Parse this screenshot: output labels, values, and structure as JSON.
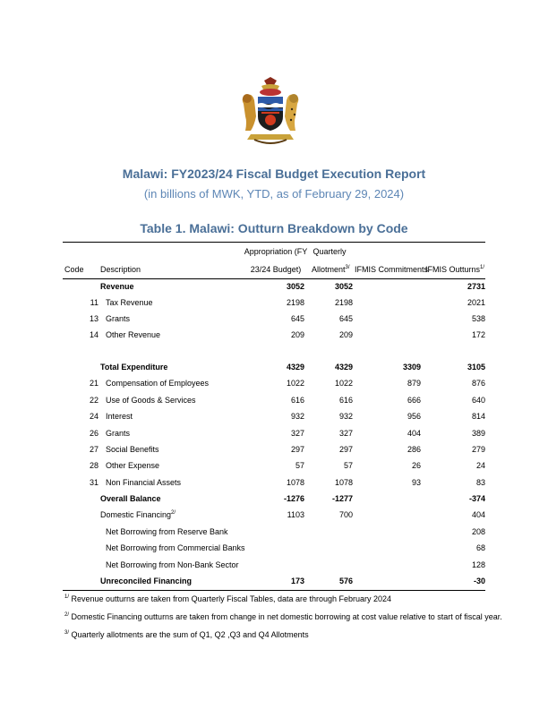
{
  "report": {
    "title": "Malawi: FY2023/24 Fiscal Budget Execution Report",
    "subtitle": "(in billions of MWK, YTD, as of February 29, 2024)",
    "table_title": "Table 1. Malawi: Outturn Breakdown by Code"
  },
  "columns": {
    "code": "Code",
    "description": "Description",
    "appropriation_1": "Appropriation (FY",
    "appropriation_2": "23/24 Budget)",
    "allotment_1": "Quarterly",
    "allotment_2": "Allotment",
    "allotment_sup": "3/",
    "commitments": "IFMIS Commitments",
    "outturns": "IFMIS Outturns",
    "outturns_sup": "1/"
  },
  "rows": [
    {
      "code": "",
      "desc": "Revenue",
      "appr": "3052",
      "allot": "3052",
      "comm": "",
      "out": "2731",
      "bold": true
    },
    {
      "code": "11",
      "desc": "Tax Revenue",
      "appr": "2198",
      "allot": "2198",
      "comm": "",
      "out": "2021"
    },
    {
      "code": "13",
      "desc": "Grants",
      "appr": "645",
      "allot": "645",
      "comm": "",
      "out": "538"
    },
    {
      "code": "14",
      "desc": "Other Revenue",
      "appr": "209",
      "allot": "209",
      "comm": "",
      "out": "172"
    },
    {
      "code": "",
      "desc": "Total Expenditure",
      "appr": "4329",
      "allot": "4329",
      "comm": "3309",
      "out": "3105",
      "bold": true
    },
    {
      "code": "21",
      "desc": "Compensation of Employees",
      "appr": "1022",
      "allot": "1022",
      "comm": "879",
      "out": "876"
    },
    {
      "code": "22",
      "desc": "Use of Goods & Services",
      "appr": "616",
      "allot": "616",
      "comm": "666",
      "out": "640"
    },
    {
      "code": "24",
      "desc": "Interest",
      "appr": "932",
      "allot": "932",
      "comm": "956",
      "out": "814"
    },
    {
      "code": "26",
      "desc": "Grants",
      "appr": "327",
      "allot": "327",
      "comm": "404",
      "out": "389"
    },
    {
      "code": "27",
      "desc": "Social Benefits",
      "appr": "297",
      "allot": "297",
      "comm": "286",
      "out": "279"
    },
    {
      "code": "28",
      "desc": "Other Expense",
      "appr": "57",
      "allot": "57",
      "comm": "26",
      "out": "24"
    },
    {
      "code": "31",
      "desc": "Non Financial Assets",
      "appr": "1078",
      "allot": "1078",
      "comm": "93",
      "out": "83"
    },
    {
      "code": "",
      "desc": "Overall Balance",
      "appr": "-1276",
      "allot": "-1277",
      "comm": "",
      "out": "-374",
      "bold": true
    },
    {
      "code": "",
      "desc": "Domestic Financing",
      "sup": "2/",
      "appr": "1103",
      "allot": "700",
      "comm": "",
      "out": "404"
    },
    {
      "code": "",
      "desc": "Net Borrowing from Reserve Bank",
      "appr": "",
      "allot": "",
      "comm": "",
      "out": "208"
    },
    {
      "code": "",
      "desc": "Net Borrowing from Commercial Banks",
      "appr": "",
      "allot": "",
      "comm": "",
      "out": "68"
    },
    {
      "code": "",
      "desc": "Net Borrowing from Non-Bank Sector",
      "appr": "",
      "allot": "",
      "comm": "",
      "out": "128"
    },
    {
      "code": "",
      "desc": "Unreconciled Financing",
      "appr": "173",
      "allot": "576",
      "comm": "",
      "out": "-30",
      "bold": true
    }
  ],
  "footnotes": [
    {
      "mark": "1/",
      "text": " Revenue outturns are taken from Quarterly Fiscal Tables, data are through February 2024"
    },
    {
      "mark": "2/",
      "text": " Domestic Financing outturns are taken from change in net domestic borrowing at cost value relative to start of fiscal year."
    },
    {
      "mark": "3/",
      "text": " Quarterly allotments are the sum of Q1, Q2 ,Q3 and Q4 Allotments"
    }
  ],
  "colors": {
    "title": "#4a6f97",
    "subtitle": "#5d86b5"
  }
}
